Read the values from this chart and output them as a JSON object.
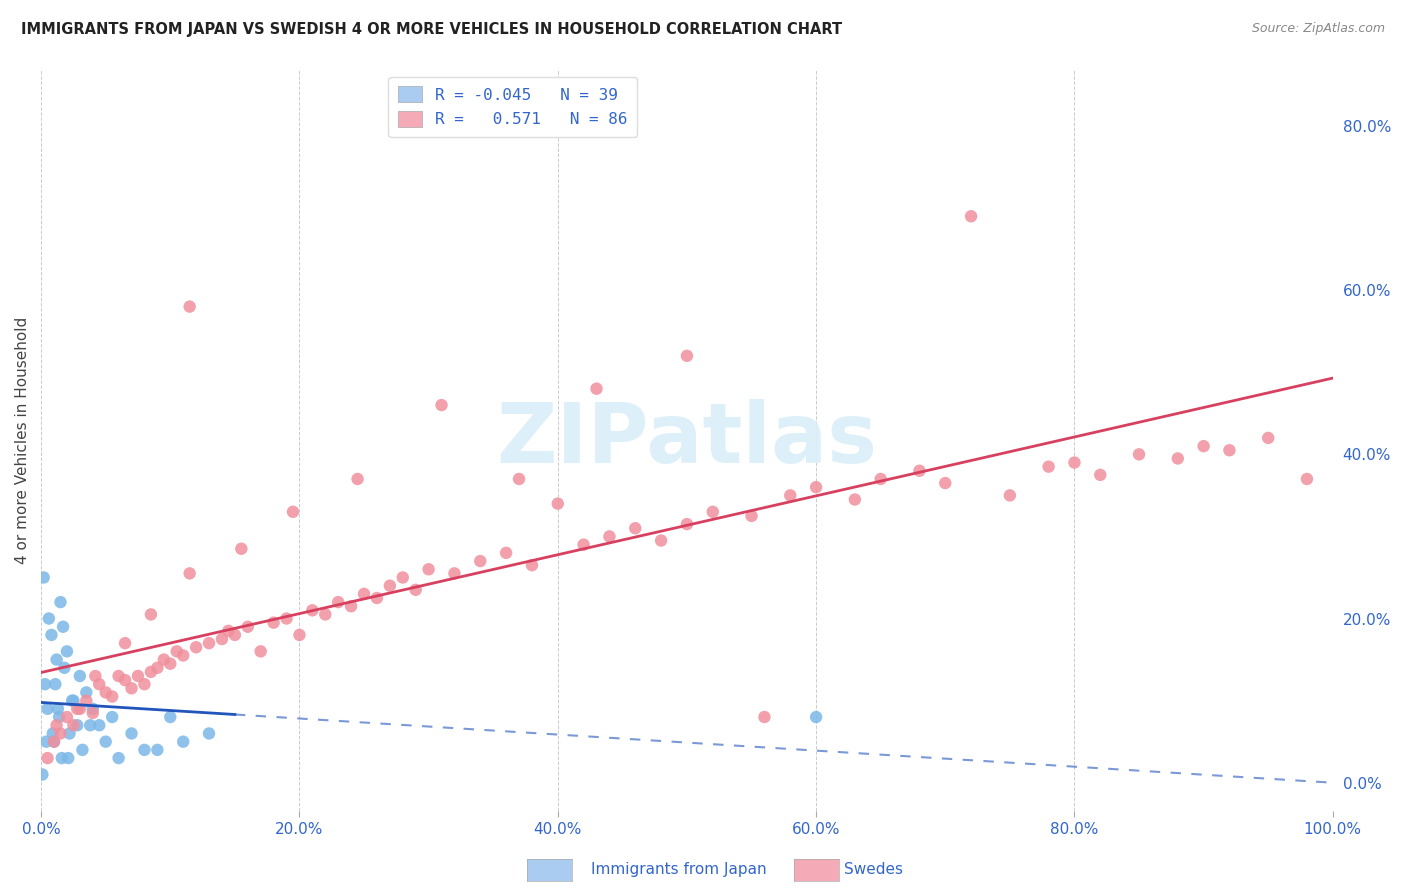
{
  "title": "IMMIGRANTS FROM JAPAN VS SWEDISH 4 OR MORE VEHICLES IN HOUSEHOLD CORRELATION CHART",
  "source": "Source: ZipAtlas.com",
  "ylabel_label": "4 or more Vehicles in Household",
  "japan_color": "#7bb8e8",
  "sweden_color": "#f0909c",
  "japan_line_color": "#2255bb",
  "sweden_line_color": "#d84060",
  "watermark_color": "#daeef8",
  "background_color": "#ffffff",
  "legend_patch_japan": "#aaccf0",
  "legend_patch_sweden": "#f5aab8",
  "japan_R": -0.045,
  "japan_N": 39,
  "sweden_R": 0.571,
  "sweden_N": 86,
  "japan_points_x": [
    0.3,
    0.5,
    0.8,
    1.0,
    1.2,
    1.4,
    1.5,
    1.6,
    1.8,
    2.0,
    2.2,
    2.5,
    2.8,
    3.0,
    3.2,
    3.5,
    4.0,
    4.5,
    5.0,
    5.5,
    6.0,
    7.0,
    8.0,
    9.0,
    10.0,
    11.0,
    13.0,
    0.2,
    0.4,
    0.6,
    0.9,
    1.1,
    1.3,
    1.7,
    2.1,
    2.4,
    3.8,
    0.1,
    60.0
  ],
  "japan_points_y": [
    12.0,
    9.0,
    18.0,
    5.0,
    15.0,
    8.0,
    22.0,
    3.0,
    14.0,
    16.0,
    6.0,
    10.0,
    7.0,
    13.0,
    4.0,
    11.0,
    9.0,
    7.0,
    5.0,
    8.0,
    3.0,
    6.0,
    4.0,
    4.0,
    8.0,
    5.0,
    6.0,
    25.0,
    5.0,
    20.0,
    6.0,
    12.0,
    9.0,
    19.0,
    3.0,
    10.0,
    7.0,
    1.0,
    8.0
  ],
  "sweden_points_x": [
    0.5,
    1.0,
    1.5,
    2.0,
    2.5,
    3.0,
    3.5,
    4.0,
    4.5,
    5.0,
    5.5,
    6.0,
    6.5,
    7.0,
    7.5,
    8.0,
    8.5,
    9.0,
    9.5,
    10.0,
    10.5,
    11.0,
    11.5,
    12.0,
    13.0,
    14.0,
    14.5,
    15.0,
    16.0,
    17.0,
    18.0,
    19.0,
    20.0,
    21.0,
    22.0,
    23.0,
    24.0,
    25.0,
    26.0,
    27.0,
    28.0,
    29.0,
    30.0,
    32.0,
    34.0,
    36.0,
    38.0,
    40.0,
    42.0,
    44.0,
    46.0,
    48.0,
    50.0,
    52.0,
    55.0,
    58.0,
    60.0,
    63.0,
    65.0,
    68.0,
    70.0,
    72.0,
    75.0,
    78.0,
    80.0,
    82.0,
    85.0,
    88.0,
    90.0,
    92.0,
    95.0,
    1.2,
    2.8,
    4.2,
    6.5,
    8.5,
    11.5,
    15.5,
    19.5,
    24.5,
    31.0,
    37.0,
    43.0,
    98.0,
    50.0,
    56.0
  ],
  "sweden_points_y": [
    3.0,
    5.0,
    6.0,
    8.0,
    7.0,
    9.0,
    10.0,
    8.5,
    12.0,
    11.0,
    10.5,
    13.0,
    12.5,
    11.5,
    13.0,
    12.0,
    13.5,
    14.0,
    15.0,
    14.5,
    16.0,
    15.5,
    58.0,
    16.5,
    17.0,
    17.5,
    18.5,
    18.0,
    19.0,
    16.0,
    19.5,
    20.0,
    18.0,
    21.0,
    20.5,
    22.0,
    21.5,
    23.0,
    22.5,
    24.0,
    25.0,
    23.5,
    26.0,
    25.5,
    27.0,
    28.0,
    26.5,
    34.0,
    29.0,
    30.0,
    31.0,
    29.5,
    31.5,
    33.0,
    32.5,
    35.0,
    36.0,
    34.5,
    37.0,
    38.0,
    36.5,
    69.0,
    35.0,
    38.5,
    39.0,
    37.5,
    40.0,
    39.5,
    41.0,
    40.5,
    42.0,
    7.0,
    9.0,
    13.0,
    17.0,
    20.5,
    25.5,
    28.5,
    33.0,
    37.0,
    46.0,
    37.0,
    48.0,
    37.0,
    52.0,
    8.0
  ]
}
